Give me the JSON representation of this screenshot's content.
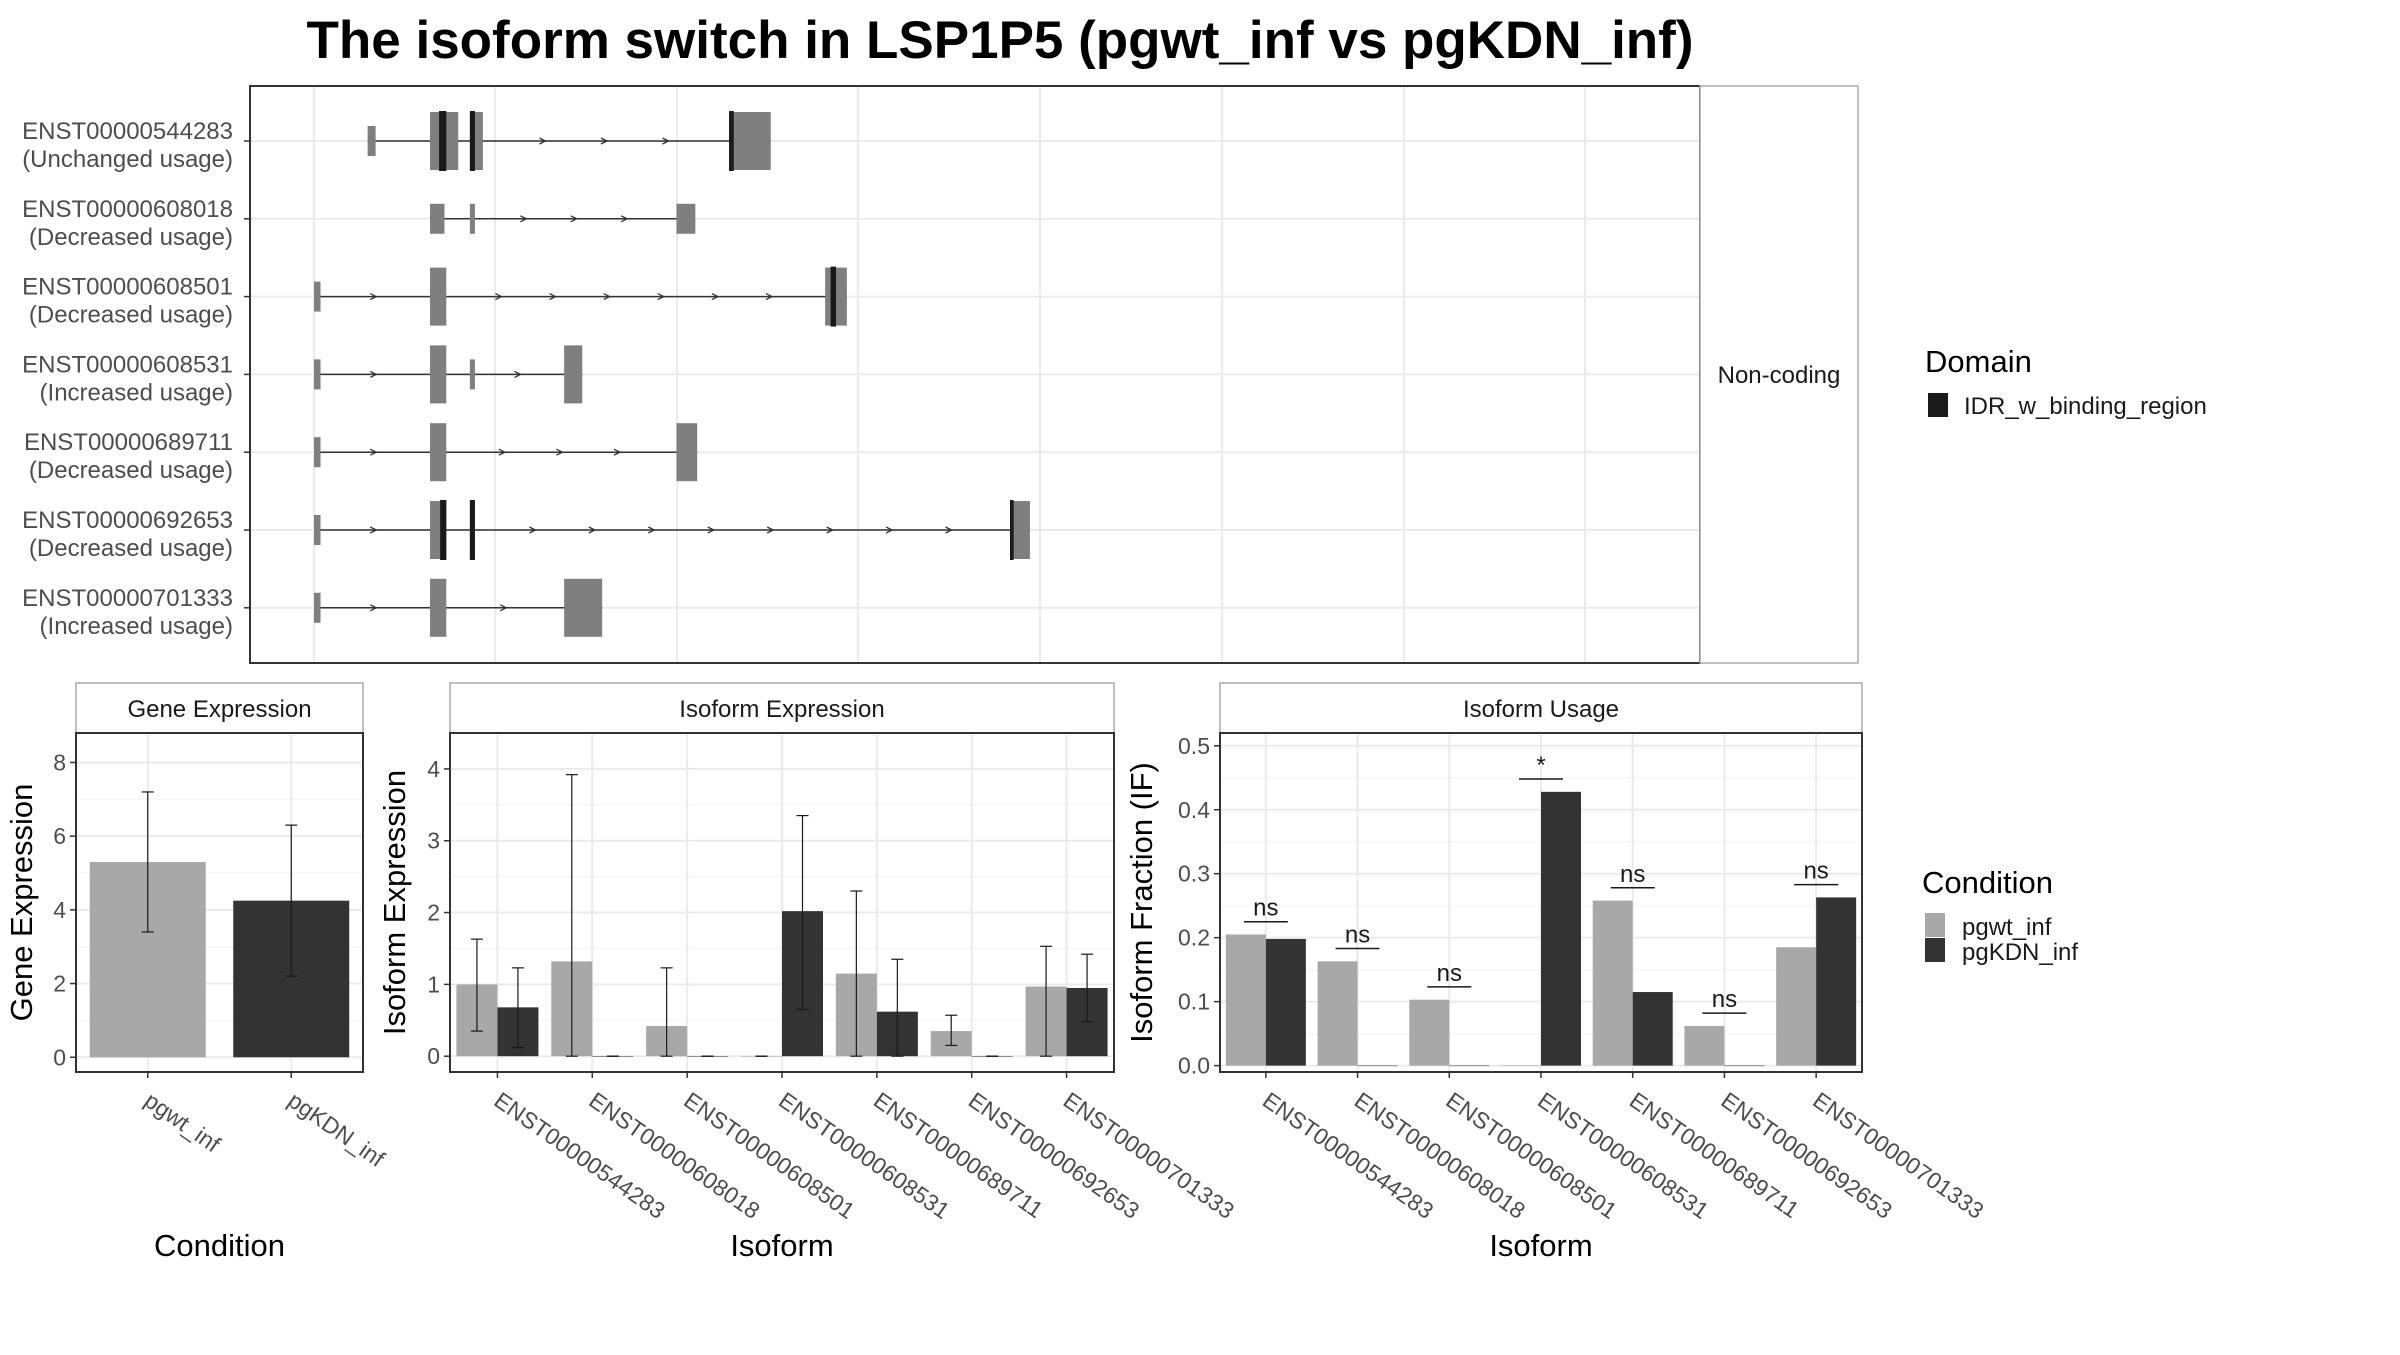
{
  "title": "The isoform switch in LSP1P5 (pgwt_inf vs pgKDN_inf)",
  "colors": {
    "exon": "#7f7f7f",
    "domain": "#1a1a1a",
    "pgwt_inf": "#a8a8a8",
    "pgKDN_inf": "#333333",
    "grid": "#ebebeb",
    "panel_border": "#333333",
    "strip_fill": "#ffffff"
  },
  "structure_panel": {
    "facet_label": "Non-coding",
    "legend": {
      "title": "Domain",
      "items": [
        {
          "label": "IDR_w_binding_region",
          "color": "#1a1a1a"
        }
      ]
    }
  },
  "chart_data": [
    {
      "id": "isoform-structures",
      "type": "gene-structure",
      "transcripts": [
        {
          "label": "ENST00000544283",
          "usage": "(Unchanged usage)",
          "span": [
            0.148,
            1.26
          ],
          "exons": [
            [
              0.148,
              0.17
            ],
            [
              0.32,
              0.398
            ],
            [
              0.43,
              0.466
            ],
            [
              1.145,
              1.26
            ]
          ],
          "thin_exons": [
            [
              0.148,
              0.17
            ],
            [
              1.15,
              1.26
            ]
          ],
          "domains": [
            [
              0.345,
              0.365
            ],
            [
              0.43,
              0.444
            ],
            [
              1.145,
              1.158
            ]
          ]
        },
        {
          "label": "ENST00000608018",
          "usage": "(Decreased usage)",
          "span": [
            0.32,
            1.052
          ],
          "exons": [
            [
              0.32,
              0.36
            ],
            [
              0.43,
              0.444
            ],
            [
              1.0,
              1.052
            ]
          ],
          "thin_exons": [
            [
              0.32,
              0.36
            ],
            [
              0.43,
              0.444
            ],
            [
              1.0,
              1.052
            ]
          ],
          "domains": []
        },
        {
          "label": "ENST00000608501",
          "usage": "(Decreased usage)",
          "span": [
            0.0,
            1.47
          ],
          "exons": [
            [
              0.0,
              0.018
            ],
            [
              0.32,
              0.365
            ],
            [
              1.41,
              1.47
            ]
          ],
          "thin_exons": [
            [
              0.0,
              0.018
            ],
            [
              1.45,
              1.47
            ]
          ],
          "domains": [
            [
              1.425,
              1.44
            ]
          ]
        },
        {
          "label": "ENST00000608531",
          "usage": "(Increased usage)",
          "span": [
            0.0,
            0.74
          ],
          "exons": [
            [
              0.0,
              0.018
            ],
            [
              0.32,
              0.365
            ],
            [
              0.43,
              0.444
            ],
            [
              0.69,
              0.74
            ]
          ],
          "thin_exons": [
            [
              0.0,
              0.018
            ],
            [
              0.43,
              0.444
            ]
          ],
          "domains": []
        },
        {
          "label": "ENST00000689711",
          "usage": "(Decreased usage)",
          "span": [
            0.0,
            1.057
          ],
          "exons": [
            [
              0.0,
              0.018
            ],
            [
              0.32,
              0.365
            ],
            [
              1.0,
              1.057
            ]
          ],
          "thin_exons": [
            [
              0.0,
              0.018
            ]
          ],
          "domains": []
        },
        {
          "label": "ENST00000692653",
          "usage": "(Decreased usage)",
          "span": [
            0.0,
            1.975
          ],
          "exons": [
            [
              0.0,
              0.018
            ],
            [
              0.32,
              0.365
            ],
            [
              0.43,
              0.444
            ],
            [
              1.92,
              1.975
            ]
          ],
          "thin_exons": [
            [
              0.0,
              0.018
            ],
            [
              1.93,
              1.975
            ]
          ],
          "domains": [
            [
              0.348,
              0.365
            ],
            [
              0.43,
              0.444
            ],
            [
              1.92,
              1.93
            ]
          ]
        },
        {
          "label": "ENST00000701333",
          "usage": "(Increased usage)",
          "span": [
            0.0,
            0.795
          ],
          "exons": [
            [
              0.0,
              0.018
            ],
            [
              0.32,
              0.365
            ],
            [
              0.69,
              0.795
            ]
          ],
          "thin_exons": [
            [
              0.0,
              0.018
            ]
          ],
          "domains": []
        }
      ]
    },
    {
      "id": "gene-expression",
      "type": "bar",
      "title": "Gene Expression",
      "xlabel": "Condition",
      "ylabel": "Gene Expression",
      "categories": [
        "pgwt_inf",
        "pgKDN_inf"
      ],
      "values": [
        5.3,
        4.25
      ],
      "error_low": [
        3.4,
        2.2
      ],
      "error_high": [
        7.2,
        6.3
      ],
      "ylim": [
        -0.4,
        8.8
      ],
      "yticks": [
        "0",
        "2",
        "4",
        "6",
        "8"
      ],
      "grid": true
    },
    {
      "id": "isoform-expression",
      "type": "bar",
      "title": "Isoform Expression",
      "xlabel": "Isoform",
      "ylabel": "Isoform Expression",
      "categories": [
        "ENST00000544283",
        "ENST00000608018",
        "ENST00000608501",
        "ENST00000608531",
        "ENST00000689711",
        "ENST00000692653",
        "ENST00000701333"
      ],
      "series": [
        {
          "name": "pgwt_inf",
          "values": [
            1.0,
            1.32,
            0.42,
            0.0,
            1.15,
            0.35,
            0.97
          ],
          "error_low": [
            0.35,
            0.0,
            0.0,
            0.0,
            0.0,
            0.15,
            0.0
          ],
          "error_high": [
            1.63,
            3.92,
            1.23,
            0.0,
            2.3,
            0.57,
            1.53
          ]
        },
        {
          "name": "pgKDN_inf",
          "values": [
            0.68,
            0.0,
            0.0,
            2.02,
            0.62,
            0.0,
            0.95
          ],
          "error_low": [
            0.12,
            0.0,
            0.0,
            0.65,
            0.0,
            0.0,
            0.48
          ],
          "error_high": [
            1.23,
            0.0,
            0.0,
            3.35,
            1.35,
            0.0,
            1.42
          ]
        }
      ],
      "ylim": [
        -0.22,
        4.5
      ],
      "yticks": [
        "0",
        "1",
        "2",
        "3",
        "4"
      ],
      "grid": true
    },
    {
      "id": "isoform-usage",
      "type": "bar",
      "title": "Isoform Usage",
      "xlabel": "Isoform",
      "ylabel": "Isoform Fraction (IF)",
      "categories": [
        "ENST00000544283",
        "ENST00000608018",
        "ENST00000608501",
        "ENST00000608531",
        "ENST00000689711",
        "ENST00000692653",
        "ENST00000701333"
      ],
      "series": [
        {
          "name": "pgwt_inf",
          "values": [
            0.205,
            0.163,
            0.103,
            0.0,
            0.258,
            0.062,
            0.185
          ]
        },
        {
          "name": "pgKDN_inf",
          "values": [
            0.198,
            0.0,
            0.0,
            0.428,
            0.115,
            0.0,
            0.263
          ]
        }
      ],
      "significance": [
        "ns",
        "ns",
        "ns",
        "*",
        "ns",
        "ns",
        "ns"
      ],
      "sig_line_y": [
        0.225,
        0.183,
        0.123,
        0.448,
        0.278,
        0.082,
        0.283
      ],
      "ylim": [
        -0.01,
        0.52
      ],
      "yticks": [
        "0.0",
        "0.1",
        "0.2",
        "0.3",
        "0.4",
        "0.5"
      ],
      "grid": true
    }
  ],
  "condition_legend": {
    "title": "Condition",
    "items": [
      {
        "label": "pgwt_inf",
        "color": "#a8a8a8"
      },
      {
        "label": "pgKDN_inf",
        "color": "#333333"
      }
    ]
  }
}
